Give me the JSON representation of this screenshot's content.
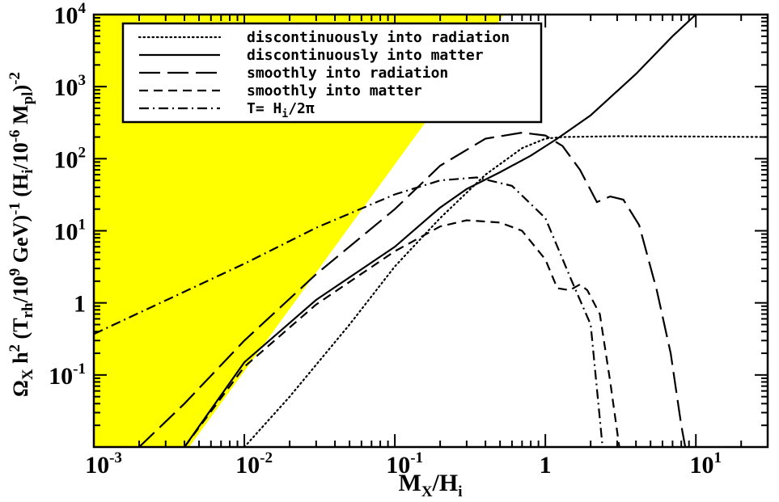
{
  "chart_data": {
    "type": "line",
    "xscale": "log",
    "yscale": "log",
    "xlim": [
      0.001,
      30
    ],
    "ylim": [
      0.01,
      10000
    ],
    "xlabel": {
      "main": "M",
      "sub1": "X",
      "mid": "/H",
      "sub2": "i"
    },
    "ylabel": {
      "p1": "Ω",
      "p1sub": "X",
      "p2": " h",
      "p2sup": "2",
      "p3": " (T",
      "p3sub": "rh",
      "p4": "/10",
      "p4sup": "9",
      "p5": " GeV)",
      "p5sup": "-1",
      "p6": "  (H",
      "p6sub": "i",
      "p7": "/10",
      "p7sup": "-6",
      "p8": " M",
      "p8sub": "pl",
      "p9": ")",
      "p9sup": "-2"
    },
    "x_ticks": [
      {
        "value": 0.001,
        "base": "10",
        "exp": "-3"
      },
      {
        "value": 0.01,
        "base": "10",
        "exp": "-2"
      },
      {
        "value": 0.1,
        "base": "10",
        "exp": "-1"
      },
      {
        "value": 1,
        "base": "1",
        "exp": ""
      },
      {
        "value": 10,
        "base": "10",
        "exp": "1"
      }
    ],
    "y_ticks": [
      {
        "value": 0.1,
        "base": "10",
        "exp": "-1"
      },
      {
        "value": 1,
        "base": "1",
        "exp": ""
      },
      {
        "value": 10,
        "base": "10",
        "exp": "1"
      },
      {
        "value": 100,
        "base": "10",
        "exp": "2"
      },
      {
        "value": 1000,
        "base": "10",
        "exp": "3"
      },
      {
        "value": 10000,
        "base": "10",
        "exp": "4"
      }
    ],
    "shaded_region": {
      "color": "#ffff00",
      "polygon": [
        [
          0.001,
          0.01
        ],
        [
          0.0043,
          0.01
        ],
        [
          0.53,
          10000
        ],
        [
          0.001,
          10000
        ]
      ]
    },
    "legend_placement": "top-center",
    "series": [
      {
        "name": "discontinuously into radiation",
        "dash": "dotted",
        "points": [
          [
            0.01,
            0.01
          ],
          [
            0.02,
            0.05
          ],
          [
            0.05,
            0.5
          ],
          [
            0.1,
            3.2
          ],
          [
            0.2,
            15
          ],
          [
            0.4,
            60
          ],
          [
            0.7,
            140
          ],
          [
            1,
            190
          ],
          [
            1.3,
            200
          ],
          [
            3,
            205
          ],
          [
            10,
            203
          ],
          [
            30,
            200
          ]
        ]
      },
      {
        "name": "discontinuously into matter",
        "dash": "solid",
        "points": [
          [
            0.004,
            0.01
          ],
          [
            0.01,
            0.15
          ],
          [
            0.03,
            1.1
          ],
          [
            0.1,
            6
          ],
          [
            0.2,
            21
          ],
          [
            0.3,
            38
          ],
          [
            0.5,
            65
          ],
          [
            0.8,
            110
          ],
          [
            1.2,
            190
          ],
          [
            2,
            400
          ],
          [
            4,
            1500
          ],
          [
            7,
            5000
          ],
          [
            10,
            10000
          ]
        ]
      },
      {
        "name": "smoothly into radiation",
        "dash": "long-dash",
        "points": [
          [
            0.002,
            0.01
          ],
          [
            0.004,
            0.04
          ],
          [
            0.01,
            0.3
          ],
          [
            0.03,
            2.5
          ],
          [
            0.1,
            20
          ],
          [
            0.2,
            80
          ],
          [
            0.4,
            190
          ],
          [
            0.7,
            230
          ],
          [
            1,
            210
          ],
          [
            1.3,
            150
          ],
          [
            1.7,
            70
          ],
          [
            2.2,
            25
          ],
          [
            2.7,
            30
          ],
          [
            3.3,
            27
          ],
          [
            4.2,
            12
          ],
          [
            5.5,
            1.5
          ],
          [
            6.8,
            0.2
          ],
          [
            8,
            0.02
          ],
          [
            8.5,
            0.01
          ]
        ]
      },
      {
        "name": "smoothly into matter",
        "dash": "dashed",
        "points": [
          [
            0.004,
            0.01
          ],
          [
            0.01,
            0.13
          ],
          [
            0.03,
            0.95
          ],
          [
            0.1,
            5.2
          ],
          [
            0.2,
            11.5
          ],
          [
            0.3,
            14
          ],
          [
            0.5,
            13
          ],
          [
            0.7,
            10
          ],
          [
            1,
            4
          ],
          [
            1.2,
            1.6
          ],
          [
            1.45,
            1.5
          ],
          [
            1.7,
            1.8
          ],
          [
            1.9,
            1.5
          ],
          [
            2.3,
            0.7
          ],
          [
            2.7,
            0.08
          ],
          [
            3.1,
            0.01
          ]
        ]
      },
      {
        "name": "T= H_i/2π",
        "dash": "dash-dot",
        "points": [
          [
            0.001,
            0.37
          ],
          [
            0.01,
            3.5
          ],
          [
            0.03,
            11
          ],
          [
            0.1,
            32
          ],
          [
            0.2,
            50
          ],
          [
            0.35,
            55
          ],
          [
            0.6,
            42
          ],
          [
            1,
            15
          ],
          [
            1.5,
            2
          ],
          [
            2,
            0.5
          ],
          [
            2.4,
            0.01
          ]
        ]
      }
    ],
    "legend_entries": [
      {
        "dash": "dotted",
        "text": "discontinuously into radiation"
      },
      {
        "dash": "solid",
        "text": "discontinuously into matter"
      },
      {
        "dash": "long-dash",
        "text": "smoothly into radiation"
      },
      {
        "dash": "dashed",
        "text": "smoothly into matter"
      },
      {
        "dash": "dash-dot",
        "text": "T= H",
        "sub": "i",
        "after": "/2π"
      }
    ]
  }
}
